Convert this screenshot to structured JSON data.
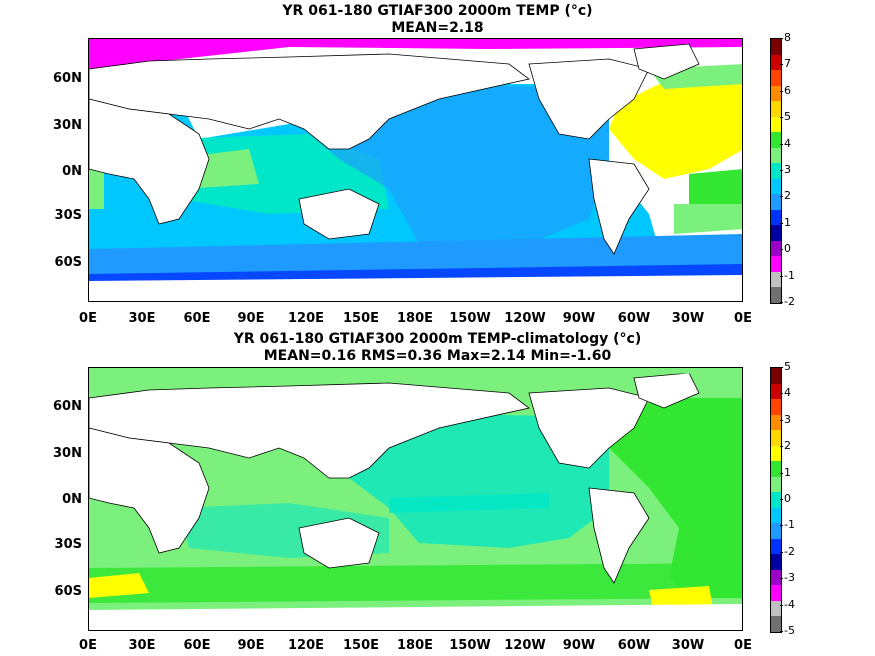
{
  "panels": [
    {
      "title_line1": "YR 061-180 GTIAF300 2000m TEMP (°c)",
      "title_line2": "MEAN=2.18",
      "colorbar": {
        "labels": [
          "8",
          "7",
          "6",
          "5",
          "4",
          "3",
          "2",
          "1",
          "0",
          "-1",
          "-2"
        ],
        "colors": [
          "#7a0000",
          "#cc0000",
          "#ff4500",
          "#ff8c00",
          "#ffd700",
          "#ffff00",
          "#32e632",
          "#7cf07c",
          "#00e6c8",
          "#00c8ff",
          "#1f9bff",
          "#0033ff",
          "#0000a0",
          "#9b00c8",
          "#ff00ff",
          "#c0c0c0",
          "#707070"
        ]
      }
    },
    {
      "title_line1": "YR 061-180 GTIAF300 2000m TEMP-climatology (°c)",
      "title_line2": "MEAN=0.16   RMS=0.36   Max=2.14   Min=-1.60",
      "colorbar": {
        "labels": [
          "5",
          "4",
          "3",
          "2",
          "1",
          "0",
          "-1",
          "-2",
          "-3",
          "-4",
          "-5"
        ],
        "colors": [
          "#7a0000",
          "#cc0000",
          "#ff4500",
          "#ff8c00",
          "#ffd700",
          "#ffff00",
          "#32e632",
          "#7cf07c",
          "#00e6c8",
          "#00c8ff",
          "#1f9bff",
          "#0033ff",
          "#0000a0",
          "#9b00c8",
          "#ff00ff",
          "#c0c0c0",
          "#707070"
        ]
      }
    }
  ],
  "axes": {
    "lat_labels": [
      "60N",
      "30N",
      "0N",
      "30S",
      "60S"
    ],
    "lon_labels": [
      "0E",
      "30E",
      "60E",
      "90E",
      "120E",
      "150E",
      "180E",
      "150W",
      "120W",
      "90W",
      "60W",
      "30W",
      "0E"
    ]
  }
}
